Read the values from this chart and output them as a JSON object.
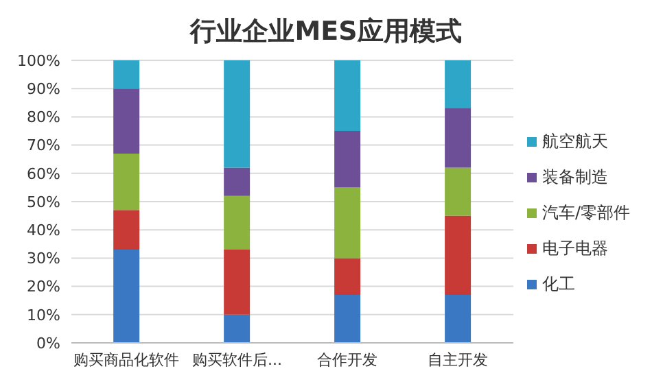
{
  "chart_data": {
    "type": "bar",
    "title": "行业企业MES应用模式",
    "stacked": true,
    "categories": [
      "购买商品化软件",
      "购买软件后...",
      "合作开发",
      "自主开发"
    ],
    "series": [
      {
        "name": "化工",
        "color": "#3a78c3",
        "values": [
          33,
          10,
          17,
          17
        ]
      },
      {
        "name": "电子电器",
        "color": "#c83a36",
        "values": [
          14,
          23,
          13,
          28
        ]
      },
      {
        "name": "汽车/零部件",
        "color": "#8cb33e",
        "values": [
          20,
          19,
          25,
          17
        ]
      },
      {
        "name": "装备制造",
        "color": "#6d4f97",
        "values": [
          23,
          10,
          20,
          21
        ]
      },
      {
        "name": "航空航天",
        "color": "#2ea6c8",
        "values": [
          10,
          38,
          25,
          17
        ]
      }
    ],
    "ylim": [
      0,
      100
    ],
    "yticks": [
      {
        "value": 0,
        "label": "0%"
      },
      {
        "value": 10,
        "label": "10%"
      },
      {
        "value": 20,
        "label": "20%"
      },
      {
        "value": 30,
        "label": "30%"
      },
      {
        "value": 40,
        "label": "40%"
      },
      {
        "value": 50,
        "label": "50%"
      },
      {
        "value": 60,
        "label": "60%"
      },
      {
        "value": 70,
        "label": "70%"
      },
      {
        "value": 80,
        "label": "80%"
      },
      {
        "value": 90,
        "label": "90%"
      },
      {
        "value": 100,
        "label": "100%"
      }
    ],
    "grid": "y",
    "legend": "right"
  }
}
